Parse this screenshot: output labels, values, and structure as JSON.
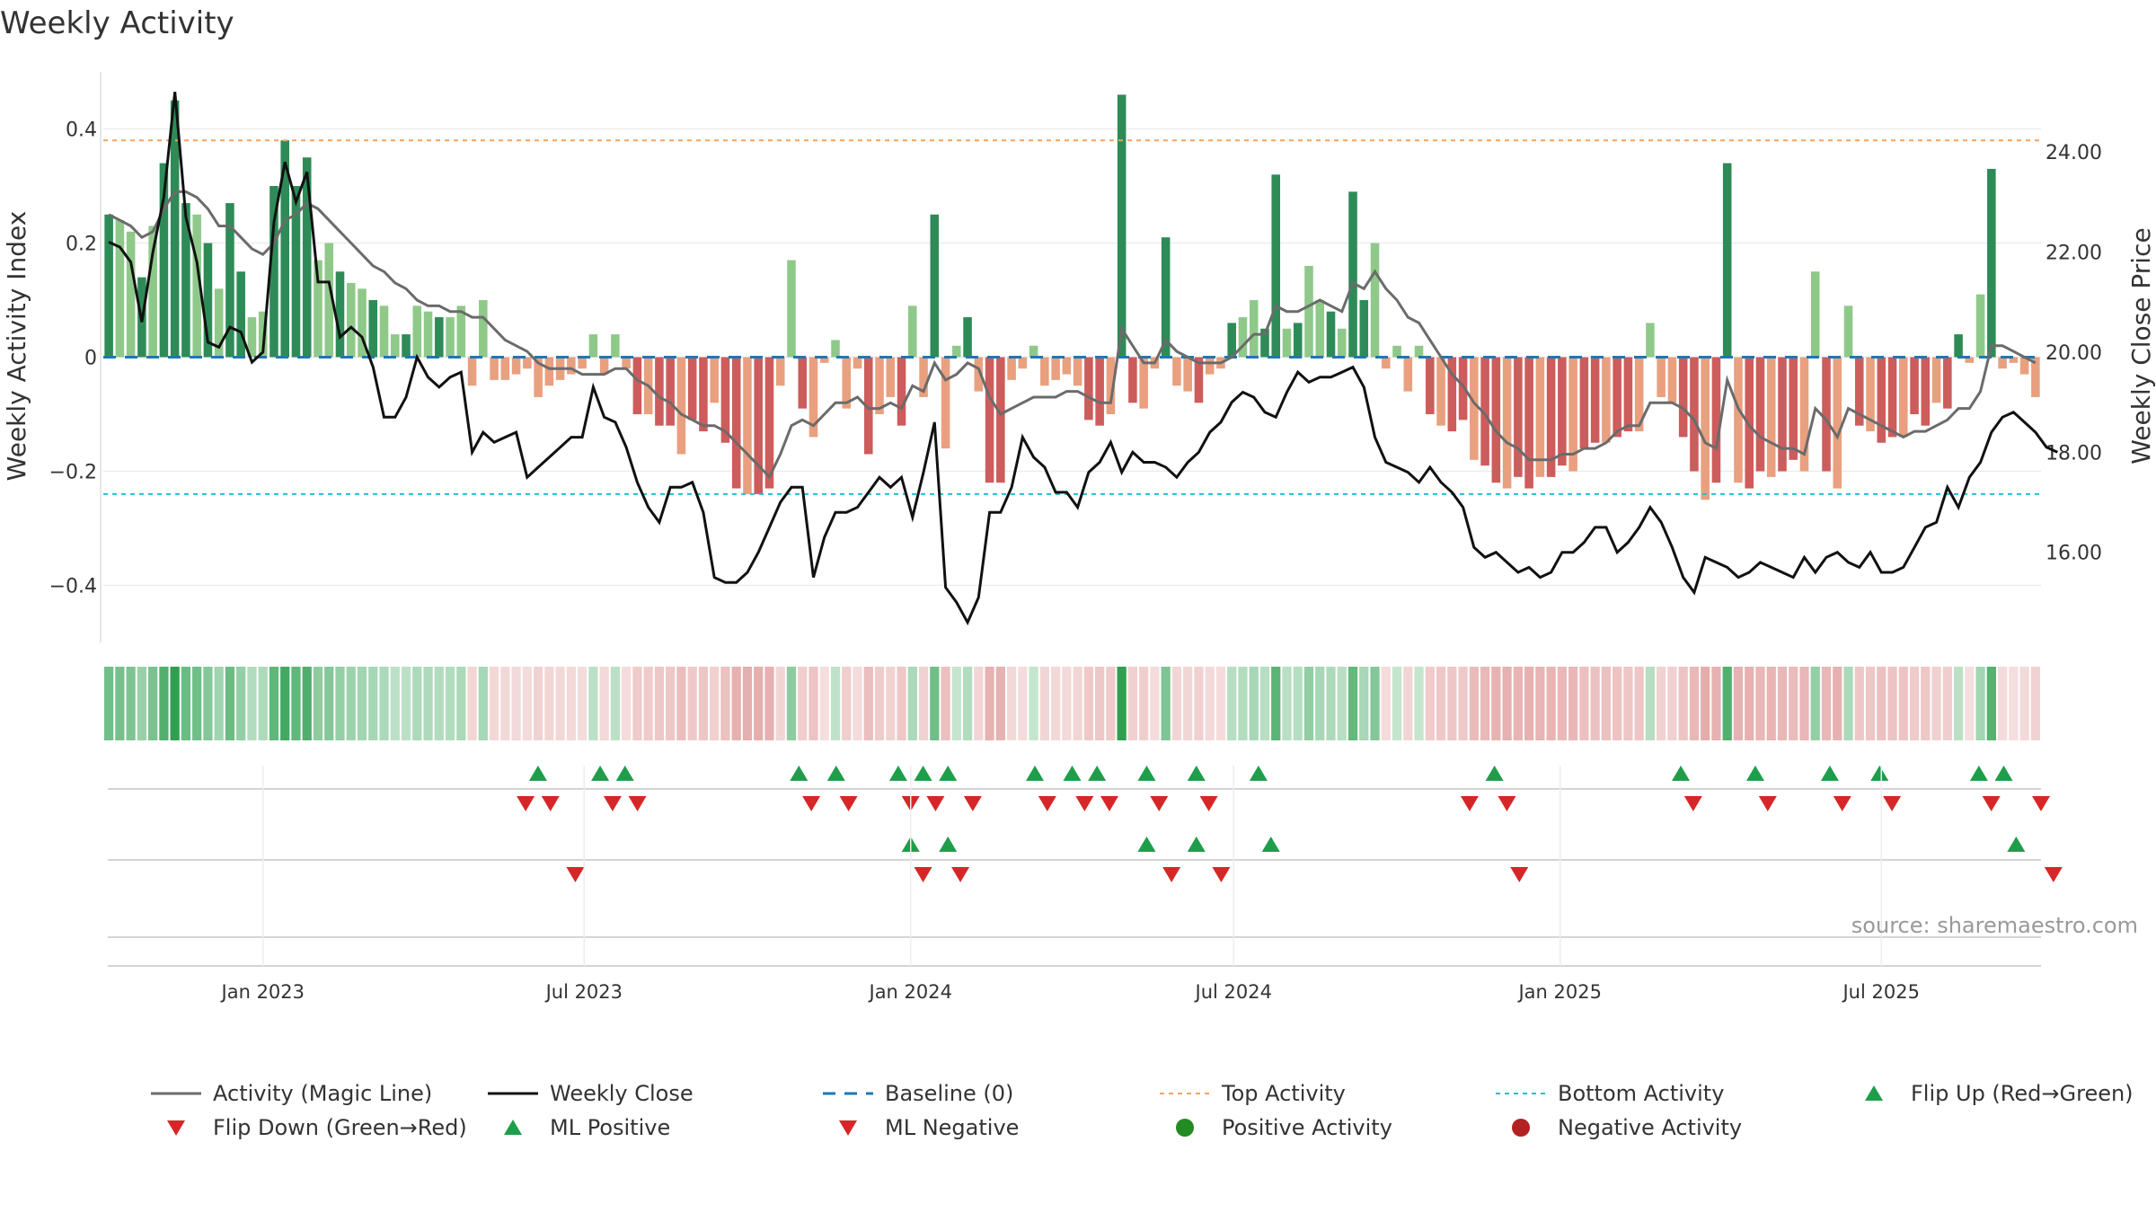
{
  "chart_data": {
    "type": "bar",
    "title": "Weekly Activity",
    "ylabel_left": "Weekly Activity Index",
    "ylabel_right": "Weekly Close Price",
    "ylim_left": [
      -0.5,
      0.5
    ],
    "ylim_right": [
      14.2,
      25.6
    ],
    "yticks_left": [
      0.4,
      0.2,
      0,
      -0.2,
      -0.4
    ],
    "yticks_left_labels": [
      "0.4",
      "0.2",
      "0",
      "−0.2",
      "−0.4"
    ],
    "yticks_right": [
      24,
      22,
      20,
      18,
      16
    ],
    "yticks_right_labels": [
      "24.00",
      "22.00",
      "20.00",
      "18.00",
      "16.00"
    ],
    "x_start": "2022-10-03",
    "x_end": "2025-09-29",
    "x_ticks": [
      {
        "date": "2023-01-01",
        "label": "Jan 2023"
      },
      {
        "date": "2023-07-01",
        "label": "Jul 2023"
      },
      {
        "date": "2024-01-01",
        "label": "Jan 2024"
      },
      {
        "date": "2024-07-01",
        "label": "Jul 2024"
      },
      {
        "date": "2025-01-01",
        "label": "Jan 2025"
      },
      {
        "date": "2025-07-01",
        "label": "Jul 2025"
      }
    ],
    "top_activity": 0.38,
    "bottom_activity": -0.24,
    "baseline": 0,
    "activity": [
      0.25,
      0.24,
      0.22,
      0.14,
      0.23,
      0.34,
      0.45,
      0.27,
      0.25,
      0.2,
      0.12,
      0.27,
      0.15,
      0.07,
      0.08,
      0.3,
      0.38,
      0.3,
      0.35,
      0.17,
      0.2,
      0.15,
      0.13,
      0.12,
      0.1,
      0.09,
      0.04,
      0.04,
      0.09,
      0.08,
      0.07,
      0.07,
      0.09,
      -0.05,
      0.1,
      -0.04,
      -0.04,
      -0.03,
      -0.02,
      -0.07,
      -0.05,
      -0.04,
      -0.03,
      -0.02,
      0.04,
      -0.03,
      0.04,
      -0.02,
      -0.1,
      -0.1,
      -0.12,
      -0.12,
      -0.17,
      -0.11,
      -0.13,
      -0.08,
      -0.15,
      -0.23,
      -0.24,
      -0.24,
      -0.23,
      -0.05,
      0.17,
      -0.09,
      -0.14,
      -0.01,
      0.03,
      -0.09,
      -0.02,
      -0.17,
      -0.1,
      -0.07,
      -0.12,
      0.09,
      -0.07,
      0.25,
      -0.16,
      0.02,
      0.07,
      -0.06,
      -0.22,
      -0.22,
      -0.04,
      -0.02,
      0.02,
      -0.05,
      -0.04,
      -0.03,
      -0.05,
      -0.11,
      -0.12,
      -0.1,
      0.46,
      -0.08,
      -0.09,
      -0.02,
      0.21,
      -0.05,
      -0.06,
      -0.08,
      -0.03,
      -0.02,
      0.06,
      0.07,
      0.1,
      0.05,
      0.32,
      0.05,
      0.06,
      0.16,
      0.1,
      0.08,
      0.05,
      0.29,
      0.1,
      0.2,
      -0.02,
      0.02,
      -0.06,
      0.02,
      -0.1,
      -0.12,
      -0.13,
      -0.11,
      -0.18,
      -0.19,
      -0.22,
      -0.23,
      -0.21,
      -0.23,
      -0.21,
      -0.21,
      -0.19,
      -0.2,
      -0.16,
      -0.15,
      -0.15,
      -0.14,
      -0.13,
      -0.13,
      0.06,
      -0.07,
      -0.08,
      -0.14,
      -0.2,
      -0.25,
      -0.22,
      0.34,
      -0.22,
      -0.23,
      -0.2,
      -0.21,
      -0.2,
      -0.18,
      -0.2,
      0.15,
      -0.2,
      -0.23,
      0.09,
      -0.12,
      -0.13,
      -0.15,
      -0.14,
      -0.14,
      -0.1,
      -0.12,
      -0.08,
      -0.09,
      0.04,
      -0.01,
      0.11,
      0.33,
      -0.02,
      -0.01,
      -0.03,
      -0.07
    ],
    "magic_line": [
      0.25,
      0.24,
      0.23,
      0.21,
      0.22,
      0.26,
      0.29,
      0.29,
      0.28,
      0.26,
      0.23,
      0.23,
      0.21,
      0.19,
      0.18,
      0.2,
      0.24,
      0.25,
      0.27,
      0.26,
      0.24,
      0.22,
      0.2,
      0.18,
      0.16,
      0.15,
      0.13,
      0.12,
      0.1,
      0.09,
      0.09,
      0.08,
      0.08,
      0.07,
      0.07,
      0.05,
      0.03,
      0.02,
      0.01,
      -0.01,
      -0.02,
      -0.02,
      -0.02,
      -0.03,
      -0.03,
      -0.03,
      -0.02,
      -0.02,
      -0.04,
      -0.05,
      -0.07,
      -0.08,
      -0.1,
      -0.11,
      -0.12,
      -0.12,
      -0.13,
      -0.15,
      -0.17,
      -0.19,
      -0.21,
      -0.17,
      -0.12,
      -0.11,
      -0.12,
      -0.1,
      -0.08,
      -0.08,
      -0.07,
      -0.09,
      -0.09,
      -0.08,
      -0.09,
      -0.05,
      -0.06,
      -0.01,
      -0.04,
      -0.03,
      -0.01,
      -0.02,
      -0.07,
      -0.1,
      -0.09,
      -0.08,
      -0.07,
      -0.07,
      -0.07,
      -0.06,
      -0.06,
      -0.07,
      -0.08,
      -0.08,
      0.05,
      0.02,
      -0.01,
      -0.01,
      0.03,
      0.01,
      0,
      -0.01,
      -0.01,
      -0.01,
      0,
      0.02,
      0.04,
      0.04,
      0.09,
      0.08,
      0.08,
      0.09,
      0.1,
      0.09,
      0.08,
      0.13,
      0.12,
      0.15,
      0.12,
      0.1,
      0.07,
      0.06,
      0.03,
      0,
      -0.03,
      -0.05,
      -0.08,
      -0.1,
      -0.13,
      -0.15,
      -0.16,
      -0.18,
      -0.18,
      -0.18,
      -0.17,
      -0.17,
      -0.16,
      -0.16,
      -0.15,
      -0.13,
      -0.12,
      -0.12,
      -0.08,
      -0.08,
      -0.08,
      -0.09,
      -0.11,
      -0.15,
      -0.16,
      -0.04,
      -0.09,
      -0.12,
      -0.14,
      -0.15,
      -0.16,
      -0.16,
      -0.17,
      -0.09,
      -0.11,
      -0.14,
      -0.09,
      -0.1,
      -0.11,
      -0.12,
      -0.13,
      -0.14,
      -0.13,
      -0.13,
      -0.12,
      -0.11,
      -0.09,
      -0.09,
      -0.06,
      0.02,
      0.02,
      0.01,
      0,
      -0.01
    ],
    "weekly_close": [
      22.2,
      22.1,
      21.8,
      20.6,
      22.0,
      23.1,
      25.2,
      22.7,
      21.8,
      20.2,
      20.1,
      20.5,
      20.4,
      19.8,
      20.0,
      22.6,
      23.8,
      23.0,
      23.6,
      21.4,
      21.4,
      20.3,
      20.5,
      20.3,
      19.7,
      18.7,
      18.7,
      19.1,
      19.9,
      19.5,
      19.3,
      19.5,
      19.6,
      18.0,
      18.4,
      18.2,
      18.3,
      18.4,
      17.5,
      17.7,
      17.9,
      18.1,
      18.3,
      18.3,
      19.3,
      18.7,
      18.6,
      18.1,
      17.4,
      16.9,
      16.6,
      17.3,
      17.3,
      17.4,
      16.8,
      15.5,
      15.4,
      15.4,
      15.6,
      16.0,
      16.5,
      17.0,
      17.3,
      17.3,
      15.5,
      16.3,
      16.8,
      16.8,
      16.9,
      17.2,
      17.5,
      17.3,
      17.5,
      16.7,
      17.6,
      18.6,
      15.3,
      15.0,
      14.6,
      15.1,
      16.8,
      16.8,
      17.3,
      18.3,
      17.9,
      17.7,
      17.2,
      17.2,
      16.9,
      17.6,
      17.8,
      18.2,
      17.6,
      18.0,
      17.8,
      17.8,
      17.7,
      17.5,
      17.8,
      18.0,
      18.4,
      18.6,
      19.0,
      19.2,
      19.1,
      18.8,
      18.7,
      19.2,
      19.6,
      19.4,
      19.5,
      19.5,
      19.6,
      19.7,
      19.3,
      18.3,
      17.8,
      17.7,
      17.6,
      17.4,
      17.7,
      17.4,
      17.2,
      16.9,
      16.1,
      15.9,
      16.0,
      15.8,
      15.6,
      15.7,
      15.5,
      15.6,
      16.0,
      16.0,
      16.2,
      16.5,
      16.5,
      16.0,
      16.2,
      16.5,
      16.9,
      16.6,
      16.1,
      15.5,
      15.2,
      15.9,
      15.8,
      15.7,
      15.5,
      15.6,
      15.8,
      15.7,
      15.6,
      15.5,
      15.9,
      15.6,
      15.9,
      16.0,
      15.8,
      15.7,
      16.0,
      15.6,
      15.6,
      15.7,
      16.1,
      16.5,
      16.6,
      17.3,
      16.9,
      17.5,
      17.8,
      18.4,
      18.7,
      18.8,
      18.6,
      18.4,
      18.1,
      18.0
    ],
    "ml_flip_up": [
      "2023-06-05",
      "2023-07-10",
      "2023-07-24",
      "2023-10-30",
      "2023-11-20",
      "2023-12-25",
      "2024-01-08",
      "2024-01-22",
      "2024-03-11",
      "2024-04-01",
      "2024-04-15",
      "2024-05-13",
      "2024-06-10",
      "2024-07-15",
      "2024-11-25",
      "2025-03-10",
      "2025-04-21",
      "2025-06-02",
      "2025-06-30",
      "2025-08-25",
      "2025-09-08"
    ],
    "ml_flip_down": [
      "2023-05-29",
      "2023-06-12",
      "2023-07-17",
      "2023-07-31",
      "2023-11-06",
      "2023-11-27",
      "2024-01-01",
      "2024-01-15",
      "2024-02-05",
      "2024-03-18",
      "2024-04-08",
      "2024-04-22",
      "2024-05-20",
      "2024-06-17",
      "2024-11-11",
      "2024-12-02",
      "2025-03-17",
      "2025-04-28",
      "2025-06-09",
      "2025-07-07",
      "2025-09-01",
      "2025-09-29"
    ],
    "act_flip_up": [
      "2024-01-01",
      "2024-01-22",
      "2024-05-13",
      "2024-06-10",
      "2024-07-22",
      "2025-09-15"
    ],
    "act_flip_down": [
      "2023-06-26",
      "2024-01-08",
      "2024-01-29",
      "2024-05-27",
      "2024-06-24",
      "2024-12-09",
      "2025-10-06"
    ],
    "source": "source: sharemaestro.com",
    "legend": [
      "Activity (Magic Line)",
      "Weekly Close",
      "Baseline (0)",
      "Top Activity",
      "Bottom Activity",
      "Flip Up (Red→Green)",
      "Flip Down (Green→Red)",
      "ML Positive",
      "ML Negative",
      "Positive Activity",
      "Negative Activity"
    ],
    "colors": {
      "pos_strong": "#2e8b57",
      "pos_light": "#8fc98a",
      "neg_strong": "#cd5c5c",
      "neg_light": "#e9a07f",
      "magic_line": "#6b6b6b",
      "close": "#111111",
      "baseline": "#1f77b4",
      "top": "#f4a460",
      "bottom": "#20c0d0",
      "up": "#1e9e4a",
      "down": "#d62728",
      "pos_dot": "#228b22",
      "neg_dot": "#b22222"
    }
  }
}
